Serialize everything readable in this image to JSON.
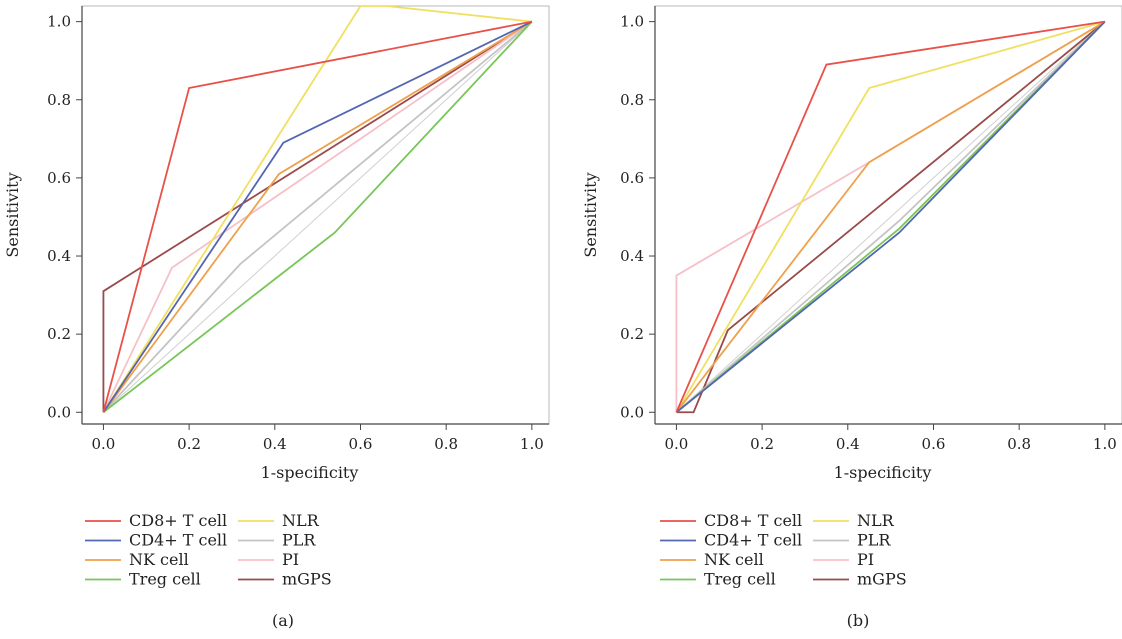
{
  "chart_data": [
    {
      "type": "line",
      "panel_label": "(a)",
      "xlabel": "1-specificity",
      "ylabel": "Sensitivity",
      "xlim": [
        -0.05,
        1.04
      ],
      "ylim": [
        -0.03,
        1.04
      ],
      "xticks": [
        0.0,
        0.2,
        0.4,
        0.6,
        0.8,
        1.0
      ],
      "yticks": [
        0.0,
        0.2,
        0.4,
        0.6,
        0.8,
        1.0
      ],
      "xtick_labels": [
        "0.0",
        "0.2",
        "0.4",
        "0.6",
        "0.8",
        "1.0"
      ],
      "ytick_labels": [
        "0.0",
        "0.2",
        "0.4",
        "0.6",
        "0.8",
        "1.0"
      ],
      "grid": false,
      "legend_position": "bottom",
      "series": [
        {
          "name": "CD8+ T cell",
          "color": "#e8514a",
          "points": [
            [
              0,
              0
            ],
            [
              0.2,
              0.83
            ],
            [
              1,
              1
            ]
          ]
        },
        {
          "name": "CD4+ T cell",
          "color": "#5466b0",
          "points": [
            [
              0,
              0
            ],
            [
              0.42,
              0.69
            ],
            [
              1,
              1
            ]
          ]
        },
        {
          "name": "NK cell",
          "color": "#f0a04a",
          "points": [
            [
              0,
              0
            ],
            [
              0.41,
              0.61
            ],
            [
              1,
              1
            ]
          ]
        },
        {
          "name": "Treg cell",
          "color": "#78c65a",
          "points": [
            [
              0,
              0
            ],
            [
              0.54,
              0.46
            ],
            [
              1,
              1
            ]
          ]
        },
        {
          "name": "NLR",
          "color": "#f0e060",
          "points": [
            [
              0,
              0
            ],
            [
              0.6,
              1.04
            ],
            [
              0.66,
              1.04
            ],
            [
              1,
              1
            ]
          ]
        },
        {
          "name": "PLR",
          "color": "#c4c4c4",
          "points": [
            [
              0,
              0
            ],
            [
              0.32,
              0.38
            ],
            [
              1,
              1
            ]
          ]
        },
        {
          "name": "PI",
          "color": "#f6c0c8",
          "points": [
            [
              0,
              0
            ],
            [
              0.16,
              0.37
            ],
            [
              1,
              1
            ]
          ]
        },
        {
          "name": "mGPS",
          "color": "#9a4a4a",
          "points": [
            [
              0,
              0
            ],
            [
              0,
              0.31
            ],
            [
              1,
              1
            ]
          ]
        }
      ]
    },
    {
      "type": "line",
      "panel_label": "(b)",
      "xlabel": "1-specificity",
      "ylabel": "Sensitivity",
      "xlim": [
        -0.05,
        1.04
      ],
      "ylim": [
        -0.03,
        1.04
      ],
      "xticks": [
        0.0,
        0.2,
        0.4,
        0.6,
        0.8,
        1.0
      ],
      "yticks": [
        0.0,
        0.2,
        0.4,
        0.6,
        0.8,
        1.0
      ],
      "xtick_labels": [
        "0.0",
        "0.2",
        "0.4",
        "0.6",
        "0.8",
        "1.0"
      ],
      "ytick_labels": [
        "0.0",
        "0.2",
        "0.4",
        "0.6",
        "0.8",
        "1.0"
      ],
      "grid": false,
      "legend_position": "bottom",
      "series": [
        {
          "name": "CD8+ T cell",
          "color": "#e8514a",
          "points": [
            [
              0,
              0
            ],
            [
              0.35,
              0.89
            ],
            [
              1,
              1
            ]
          ]
        },
        {
          "name": "CD4+ T cell",
          "color": "#5466b0",
          "points": [
            [
              0,
              0
            ],
            [
              0.52,
              0.46
            ],
            [
              1,
              1
            ]
          ]
        },
        {
          "name": "NK cell",
          "color": "#f0a04a",
          "points": [
            [
              0,
              0
            ],
            [
              0.45,
              0.64
            ],
            [
              1,
              1
            ]
          ]
        },
        {
          "name": "Treg cell",
          "color": "#78c65a",
          "points": [
            [
              0,
              0
            ],
            [
              0.52,
              0.47
            ],
            [
              1,
              1
            ]
          ]
        },
        {
          "name": "NLR",
          "color": "#f0e060",
          "points": [
            [
              0,
              0
            ],
            [
              0.45,
              0.83
            ],
            [
              1,
              1
            ]
          ]
        },
        {
          "name": "PLR",
          "color": "#c4c4c4",
          "points": [
            [
              0,
              0
            ],
            [
              0.52,
              0.49
            ],
            [
              1,
              1
            ]
          ]
        },
        {
          "name": "PI",
          "color": "#f6c0c8",
          "points": [
            [
              0,
              0
            ],
            [
              0,
              0.35
            ],
            [
              0.45,
              0.64
            ],
            [
              1,
              1
            ]
          ]
        },
        {
          "name": "mGPS",
          "color": "#9a4a4a",
          "points": [
            [
              0,
              0
            ],
            [
              0.04,
              0
            ],
            [
              0.12,
              0.21
            ],
            [
              1,
              1
            ]
          ]
        }
      ]
    }
  ]
}
